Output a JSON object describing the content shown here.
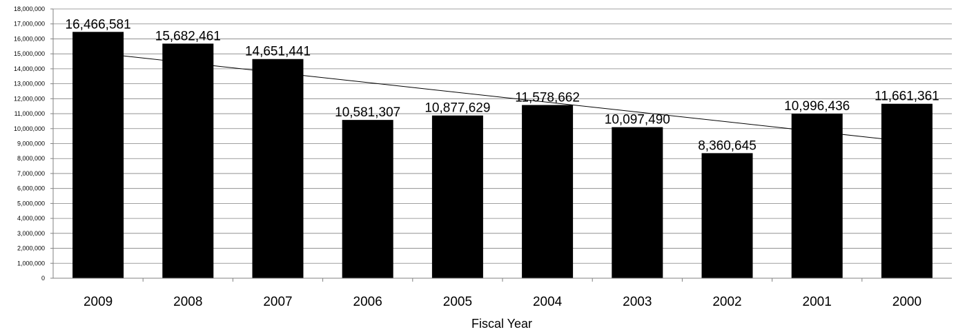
{
  "chart_data": {
    "type": "bar",
    "categories": [
      "2009",
      "2008",
      "2007",
      "2006",
      "2005",
      "2004",
      "2003",
      "2002",
      "2001",
      "2000"
    ],
    "values": [
      16466581,
      15682461,
      14651441,
      10581307,
      10877629,
      11578662,
      10097490,
      8360645,
      10996436,
      11661361
    ],
    "data_labels": [
      "16,466,581",
      "15,682,461",
      "14,651,441",
      "10,581,307",
      "10,877,629",
      "11,578,662",
      "10,097,490",
      "8,360,645",
      "10,996,436",
      "11,661,361"
    ],
    "y_ticks": [
      "0",
      "1,000,000",
      "2,000,000",
      "3,000,000",
      "4,000,000",
      "5,000,000",
      "6,000,000",
      "7,000,000",
      "8,000,000",
      "9,000,000",
      "10,000,000",
      "11,000,000",
      "12,000,000",
      "13,000,000",
      "14,000,000",
      "15,000,000",
      "16,000,000",
      "17,000,000",
      "18,000,000"
    ],
    "ylim": [
      0,
      18000000
    ],
    "xlabel": "Fiscal Year",
    "ylabel": "",
    "title": "",
    "grid": true,
    "trendline": "linear",
    "bar_color": "#000000",
    "grid_color": "#808080"
  }
}
